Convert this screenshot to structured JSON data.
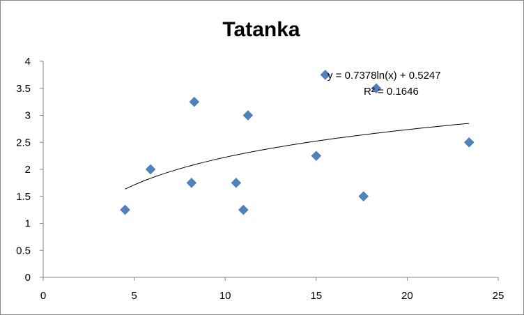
{
  "chart_data": {
    "type": "scatter",
    "title": "Tatanka",
    "xlabel": "",
    "ylabel": "",
    "xlim": [
      0,
      25
    ],
    "ylim": [
      0,
      4
    ],
    "xticks": [
      "0",
      "5",
      "10",
      "15",
      "20",
      "25"
    ],
    "yticks": [
      "0",
      "0.5",
      "1",
      "1.5",
      "2",
      "2.5",
      "3",
      "3.5",
      "4"
    ],
    "grid": false,
    "legend": "none",
    "marker_color": "#4F81BD",
    "series": [
      {
        "name": "Tatanka",
        "points": [
          {
            "x": 4.5,
            "y": 1.25
          },
          {
            "x": 5.9,
            "y": 2.0
          },
          {
            "x": 8.3,
            "y": 3.25
          },
          {
            "x": 8.15,
            "y": 1.75
          },
          {
            "x": 11.25,
            "y": 3.0
          },
          {
            "x": 10.6,
            "y": 1.75
          },
          {
            "x": 11.0,
            "y": 1.25
          },
          {
            "x": 15.0,
            "y": 2.25
          },
          {
            "x": 15.5,
            "y": 3.75
          },
          {
            "x": 18.3,
            "y": 3.5
          },
          {
            "x": 17.6,
            "y": 1.5
          },
          {
            "x": 23.4,
            "y": 2.5
          }
        ]
      }
    ],
    "trendline": {
      "type": "logarithmic",
      "a": 0.7378,
      "b": 0.5247,
      "x_range": [
        4.5,
        23.4
      ],
      "equation_label": "y = 0.7378ln(x) + 0.5247",
      "r2_label": "R² = 0.1646"
    }
  }
}
